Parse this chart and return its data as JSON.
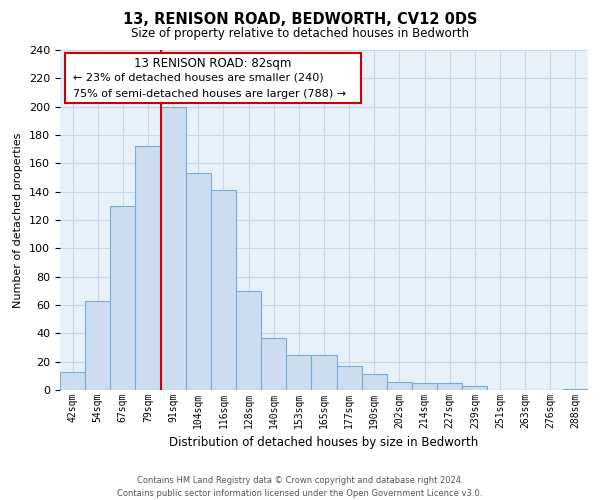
{
  "title": "13, RENISON ROAD, BEDWORTH, CV12 0DS",
  "subtitle": "Size of property relative to detached houses in Bedworth",
  "xlabel": "Distribution of detached houses by size in Bedworth",
  "ylabel": "Number of detached properties",
  "bar_labels": [
    "42sqm",
    "54sqm",
    "67sqm",
    "79sqm",
    "91sqm",
    "104sqm",
    "116sqm",
    "128sqm",
    "140sqm",
    "153sqm",
    "165sqm",
    "177sqm",
    "190sqm",
    "202sqm",
    "214sqm",
    "227sqm",
    "239sqm",
    "251sqm",
    "263sqm",
    "276sqm",
    "288sqm"
  ],
  "bar_values": [
    13,
    63,
    130,
    172,
    200,
    153,
    141,
    70,
    37,
    25,
    25,
    17,
    11,
    6,
    5,
    5,
    3,
    0,
    0,
    0,
    1
  ],
  "bar_color": "#cddcee",
  "bar_edge_color": "#7aadd4",
  "ylim": [
    0,
    240
  ],
  "yticks": [
    0,
    20,
    40,
    60,
    80,
    100,
    120,
    140,
    160,
    180,
    200,
    220,
    240
  ],
  "vline_x": 4.0,
  "vline_color": "#cc0000",
  "annotation_title": "13 RENISON ROAD: 82sqm",
  "annotation_line1": "← 23% of detached houses are smaller (240)",
  "annotation_line2": "75% of semi-detached houses are larger (788) →",
  "annotation_box_color": "#ffffff",
  "annotation_box_edge": "#cc0000",
  "footer_line1": "Contains HM Land Registry data © Crown copyright and database right 2024.",
  "footer_line2": "Contains public sector information licensed under the Open Government Licence v3.0.",
  "background_color": "#ffffff",
  "grid_color": "#c8d8e8"
}
